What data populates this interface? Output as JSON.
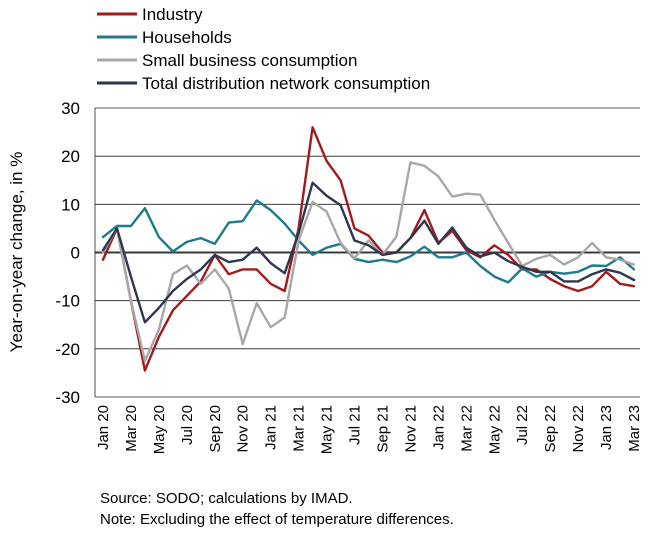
{
  "chart_data": {
    "type": "line",
    "title": "",
    "xlabel": "",
    "ylabel": "Year-on-year change, in %",
    "ylim": [
      -30,
      30
    ],
    "yticks": [
      -30,
      -20,
      -10,
      0,
      10,
      20,
      30
    ],
    "xtick_labels": [
      "Jan 20",
      "Mar 20",
      "May 20",
      "Jul 20",
      "Sep 20",
      "Nov 20",
      "Jan 21",
      "Mar 21",
      "May 21",
      "Jul 21",
      "Sep 21",
      "Nov 21",
      "Jan 22",
      "Mar 22",
      "May 22",
      "Jul 22",
      "Sep 22",
      "Nov 22",
      "Jan 23",
      "Mar 23"
    ],
    "x": [
      "Jan 20",
      "Feb 20",
      "Mar 20",
      "Apr 20",
      "May 20",
      "Jun 20",
      "Jul 20",
      "Aug 20",
      "Sep 20",
      "Oct 20",
      "Nov 20",
      "Dec 20",
      "Jan 21",
      "Feb 21",
      "Mar 21",
      "Apr 21",
      "May 21",
      "Jun 21",
      "Jul 21",
      "Aug 21",
      "Sep 21",
      "Oct 21",
      "Nov 21",
      "Dec 21",
      "Jan 22",
      "Feb 22",
      "Mar 22",
      "Apr 22",
      "May 22",
      "Jun 22",
      "Jul 22",
      "Aug 22",
      "Sep 22",
      "Oct 22",
      "Nov 22",
      "Dec 22",
      "Jan 23",
      "Feb 23",
      "Mar 23"
    ],
    "grid": "horizontal",
    "legend_position": "top-left",
    "series": [
      {
        "name": "Industry",
        "color": "#a01c1c",
        "values": [
          -1.5,
          5,
          -10,
          -24.5,
          -17.5,
          -12,
          -9,
          -6,
          -0.5,
          -4.5,
          -3.5,
          -3.5,
          -6.5,
          -8,
          5,
          26,
          19,
          15,
          5,
          3.5,
          0,
          0,
          3,
          8.8,
          2,
          4.5,
          0.5,
          -1,
          1.5,
          -0.5,
          -3.5,
          -3.5,
          -5.5,
          -7,
          -8,
          -7,
          -4,
          -6.5,
          -7
        ]
      },
      {
        "name": "Households",
        "color": "#1f7a8c",
        "values": [
          3.2,
          5.5,
          5.5,
          9.2,
          3.2,
          0.2,
          2.2,
          3,
          1.8,
          6.2,
          6.5,
          10.8,
          8.8,
          6,
          2.5,
          -0.5,
          1,
          1.8,
          -1.3,
          -2,
          -1.5,
          -2,
          -0.8,
          1.2,
          -1,
          -1,
          0,
          -2.8,
          -5,
          -6.2,
          -3.3,
          -5,
          -4,
          -4.4,
          -4,
          -2.7,
          -2.8,
          -1,
          -3.5
        ]
      },
      {
        "name": "Small business consumption",
        "color": "#a8a8a8",
        "values": [
          0,
          5,
          -10,
          -22.5,
          -16,
          -4.5,
          -2.7,
          -6.5,
          -3.5,
          -7.5,
          -19,
          -10.5,
          -15.5,
          -13.5,
          2.5,
          10.5,
          8.5,
          2,
          -1.2,
          2.5,
          -0.5,
          3.3,
          18.7,
          18,
          15.8,
          11.6,
          12.2,
          12,
          6.8,
          2,
          -2.8,
          -1.3,
          -0.5,
          -2.5,
          -1,
          2,
          -1,
          -1.5,
          -2.5
        ]
      },
      {
        "name": "Total distribution network consumption",
        "color": "#2e3650",
        "values": [
          0.5,
          5,
          -5,
          -14.5,
          -11.5,
          -8,
          -5.5,
          -3.5,
          -0.5,
          -2,
          -1.5,
          1,
          -2.2,
          -4.3,
          4,
          14.5,
          11.8,
          9.8,
          2.5,
          1.5,
          -0.5,
          0,
          3,
          6.6,
          1.8,
          5.2,
          1,
          -0.8,
          0,
          -1.8,
          -3,
          -4,
          -4,
          -6,
          -6,
          -4.5,
          -3.5,
          -4.2,
          -5.7
        ]
      }
    ],
    "footnotes": {
      "source": "Source: SODO; calculations by IMAD.",
      "note": "Note: Excluding the effect of temperature differences."
    },
    "colors": {
      "zero_line": "#3a3a3a",
      "grid": "#222222",
      "axis": "#222222"
    }
  }
}
